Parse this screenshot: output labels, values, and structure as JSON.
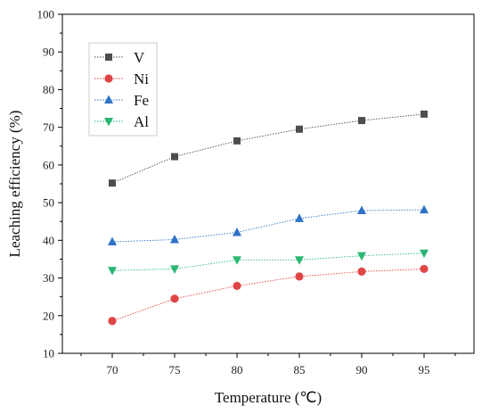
{
  "chart_data": {
    "type": "line",
    "title": "",
    "xlabel": "Temperature (℃)",
    "ylabel": "Leaching efficiency (%)",
    "x": [
      70,
      75,
      80,
      85,
      90,
      95
    ],
    "xlim": [
      66,
      99
    ],
    "ylim": [
      10,
      100
    ],
    "xticks": [
      "70",
      "75",
      "80",
      "85",
      "90",
      "95"
    ],
    "yticks": [
      "10",
      "20",
      "30",
      "40",
      "50",
      "60",
      "70",
      "80",
      "90",
      "100"
    ],
    "legend_position": "top-left",
    "series": [
      {
        "name": "V",
        "marker": "square",
        "color": "#4d4d4d",
        "values": [
          55.2,
          62.2,
          66.4,
          69.5,
          71.8,
          73.5
        ]
      },
      {
        "name": "Ni",
        "marker": "circle",
        "color": "#e04545",
        "values": [
          18.6,
          24.5,
          27.9,
          30.4,
          31.7,
          32.4
        ]
      },
      {
        "name": "Fe",
        "marker": "triangle-up",
        "color": "#2f72c8",
        "values": [
          39.6,
          40.2,
          42.1,
          45.8,
          47.9,
          48.1
        ]
      },
      {
        "name": "Al",
        "marker": "triangle-down",
        "color": "#2bb673",
        "values": [
          32.0,
          32.4,
          34.8,
          34.8,
          35.9,
          36.6
        ]
      }
    ]
  }
}
